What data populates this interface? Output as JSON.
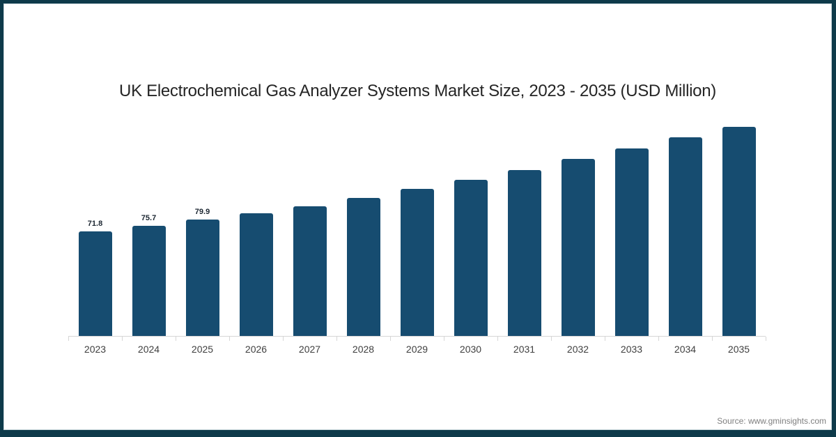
{
  "page": {
    "title": "UK Electrochemical Gas Analyzer Systems Market Size, 2023 - 2035 (USD Million)",
    "source": "Source: www.gminsights.com"
  },
  "colors": {
    "bar": "#164c70",
    "frame": "#0e3a4a",
    "axis_line": "#d6d6d6",
    "title_text": "#252525",
    "bar_label_text": "#1b2631",
    "x_tick_text": "#3f3f3f",
    "source_text": "#7f7f7f"
  },
  "chart_data": {
    "type": "bar",
    "title": "UK Electrochemical Gas Analyzer Systems Market Size, 2023 - 2035 (USD Million)",
    "unit": "USD Million",
    "categories": [
      "2023",
      "2024",
      "2025",
      "2026",
      "2027",
      "2028",
      "2029",
      "2030",
      "2031",
      "2032",
      "2033",
      "2034",
      "2035"
    ],
    "values": [
      71.8,
      75.7,
      79.9,
      84.2,
      89.0,
      94.8,
      101.0,
      107.2,
      113.9,
      121.5,
      128.8,
      136.4,
      143.6
    ],
    "data_labels": [
      "71.8",
      "75.7",
      "79.9",
      "",
      "",
      "",
      "",
      "",
      "",
      "",
      "",
      "",
      ""
    ],
    "xlabel": "",
    "ylabel": "",
    "ylim": [
      0,
      150
    ],
    "grid": false,
    "legend": false,
    "y_axis_visible": false
  }
}
